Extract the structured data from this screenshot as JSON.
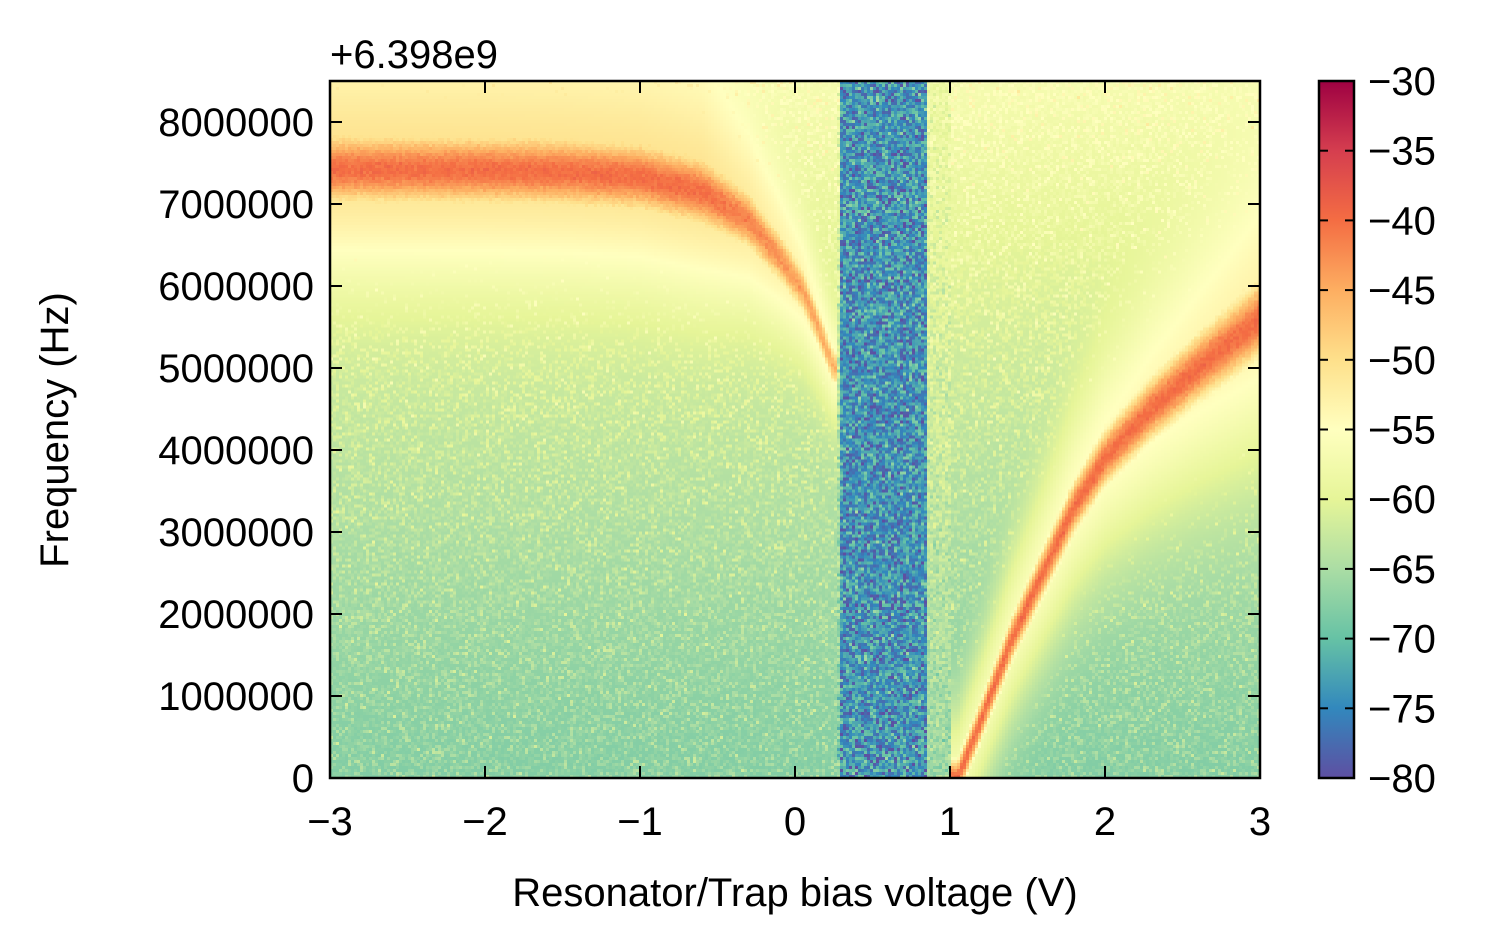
{
  "chart_data": {
    "type": "heatmap",
    "title": "",
    "xlabel": "Resonator/Trap bias voltage (V)",
    "ylabel": "Frequency (Hz)",
    "y_offset_label": "+6.398e9",
    "xlim": [
      -3,
      3
    ],
    "ylim": [
      0,
      8500000
    ],
    "x_ticks": [
      -3,
      -2,
      -1,
      0,
      1,
      2,
      3
    ],
    "x_tick_labels": [
      "−3",
      "−2",
      "−1",
      "0",
      "1",
      "2",
      "3"
    ],
    "y_ticks": [
      0,
      1000000,
      2000000,
      3000000,
      4000000,
      5000000,
      6000000,
      7000000,
      8000000
    ],
    "y_tick_labels": [
      "0",
      "1000000",
      "2000000",
      "3000000",
      "4000000",
      "5000000",
      "6000000",
      "7000000",
      "8000000"
    ],
    "colorbar": {
      "min": -80,
      "max": -30,
      "colormap": "Spectral_r",
      "ticks": [
        -30,
        -35,
        -40,
        -45,
        -50,
        -55,
        -60,
        -65,
        -70,
        -75,
        -80
      ],
      "tick_labels": [
        "−30",
        "−35",
        "−40",
        "−45",
        "−50",
        "−55",
        "−60",
        "−65",
        "−70",
        "−75",
        "−80"
      ]
    },
    "colormap_stops": [
      "#5e4fa2",
      "#3288bd",
      "#66c2a5",
      "#abdda4",
      "#e6f598",
      "#ffffbf",
      "#fee08b",
      "#fdae61",
      "#f46d43",
      "#d53e4f",
      "#9e0142"
    ],
    "features": {
      "resonance_branch_left": {
        "description_values": "resonance near 7400000 Hz above offset at -3 V bending down to about 5000000 Hz near 0.25 V",
        "points": [
          [
            -3.0,
            7420000
          ],
          [
            -2.0,
            7410000
          ],
          [
            -1.5,
            7390000
          ],
          [
            -1.0,
            7330000
          ],
          [
            -0.6,
            7150000
          ],
          [
            -0.3,
            6800000
          ],
          [
            -0.1,
            6350000
          ],
          [
            0.05,
            5950000
          ],
          [
            0.15,
            5500000
          ],
          [
            0.25,
            5000000
          ]
        ],
        "peak_value": -40
      },
      "resonance_branch_right": {
        "description_values": "resonance rising from about 0 Hz near 1.1 V to about 5600000 Hz at 3 V",
        "points": [
          [
            1.05,
            0
          ],
          [
            1.2,
            700000
          ],
          [
            1.4,
            1700000
          ],
          [
            1.6,
            2500000
          ],
          [
            1.8,
            3300000
          ],
          [
            2.0,
            3900000
          ],
          [
            2.3,
            4500000
          ],
          [
            2.6,
            5000000
          ],
          [
            3.0,
            5600000
          ]
        ],
        "peak_value": -40
      },
      "noise_band": {
        "x_range": [
          0.3,
          0.85
        ],
        "level": -74
      },
      "background_level_top": -57,
      "background_level_bottom": -68
    }
  }
}
